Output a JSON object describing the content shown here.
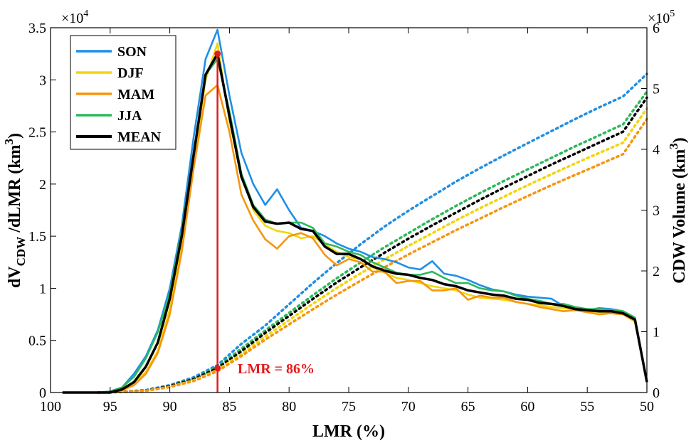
{
  "chart_data": {
    "type": "line",
    "xlabel": "LMR (%)",
    "x_reversed": true,
    "xlim": [
      100,
      50
    ],
    "x_ticks": [
      "100",
      "95",
      "90",
      "85",
      "80",
      "75",
      "70",
      "65",
      "60",
      "55",
      "50"
    ],
    "y_left": {
      "label_parts": {
        "d": "dV",
        "sub": "CDW",
        "mid": " /dLMR (km",
        "sup": "3",
        "end": ")"
      },
      "ylim": [
        0,
        35000
      ],
      "ticks": [
        "0",
        "0.5",
        "1",
        "1.5",
        "2",
        "2.5",
        "3",
        "3.5"
      ],
      "exponent_base": "×10",
      "exponent_power": "4"
    },
    "y_right": {
      "label_parts": {
        "main": "CDW Volume (km",
        "sup": "3",
        "end": ")"
      },
      "ylim": [
        0,
        600000
      ],
      "ticks": [
        "0",
        "1",
        "2",
        "3",
        "4",
        "5",
        "6"
      ],
      "exponent_base": "×10",
      "exponent_power": "5"
    },
    "grid": false,
    "legend_position": "top-left",
    "annotation": {
      "text": "LMR = 86%",
      "x": 86,
      "color": "#e31a1c",
      "peak_y": 32500,
      "cum_y": 40000
    },
    "colors": {
      "SON": "#1f8fe5",
      "DJF": "#f2d50a",
      "MAM": "#f5960f",
      "JJA": "#2eb85c",
      "MEAN": "#000000"
    },
    "series": [
      {
        "name": "SON",
        "x": [
          99,
          98,
          97,
          96,
          95,
          94,
          93,
          92,
          91,
          90,
          89,
          88,
          87,
          86,
          85,
          84,
          83,
          82,
          81,
          80,
          79,
          78,
          77,
          76,
          75,
          74,
          73,
          72,
          71,
          70,
          69,
          68,
          67,
          66,
          65,
          64,
          63,
          62,
          61,
          60,
          59,
          58,
          57,
          56,
          55,
          54,
          53,
          52,
          51,
          50
        ],
        "values": [
          0,
          0,
          0,
          0,
          100,
          500,
          1800,
          3500,
          6000,
          10000,
          16000,
          24500,
          32000,
          34800,
          28500,
          23000,
          20000,
          18000,
          19500,
          17500,
          15800,
          15500,
          15000,
          14300,
          13800,
          13500,
          13000,
          12800,
          12500,
          12000,
          11800,
          12600,
          11400,
          11200,
          10800,
          10300,
          9900,
          9700,
          9400,
          9200,
          9100,
          9000,
          8300,
          8000,
          7900,
          8100,
          8000,
          7800,
          7000,
          1000
        ]
      },
      {
        "name": "DJF",
        "x": [
          99,
          98,
          97,
          96,
          95,
          94,
          93,
          92,
          91,
          90,
          89,
          88,
          87,
          86,
          85,
          84,
          83,
          82,
          81,
          80,
          79,
          78,
          77,
          76,
          75,
          74,
          73,
          72,
          71,
          70,
          69,
          68,
          67,
          66,
          65,
          64,
          63,
          62,
          61,
          60,
          59,
          58,
          57,
          56,
          55,
          54,
          53,
          52,
          51,
          50
        ],
        "values": [
          0,
          0,
          0,
          0,
          0,
          200,
          800,
          2000,
          4000,
          8000,
          14000,
          22000,
          30000,
          33500,
          26000,
          21000,
          17500,
          16000,
          15500,
          15300,
          14800,
          15000,
          14200,
          13500,
          13000,
          12800,
          12000,
          11500,
          11000,
          10800,
          10500,
          10200,
          10000,
          9800,
          9400,
          9100,
          9000,
          8900,
          8700,
          8500,
          8400,
          8200,
          8100,
          8000,
          7800,
          7700,
          7600,
          7500,
          6800,
          1000
        ]
      },
      {
        "name": "MAM",
        "x": [
          99,
          98,
          97,
          96,
          95,
          94,
          93,
          92,
          91,
          90,
          89,
          88,
          87,
          86,
          85,
          84,
          83,
          82,
          81,
          80,
          79,
          78,
          77,
          76,
          75,
          74,
          73,
          72,
          71,
          70,
          69,
          68,
          67,
          66,
          65,
          64,
          63,
          62,
          61,
          60,
          59,
          58,
          57,
          56,
          55,
          54,
          53,
          52,
          51,
          50
        ],
        "values": [
          0,
          0,
          0,
          0,
          0,
          200,
          700,
          1800,
          3800,
          7500,
          13500,
          21500,
          28500,
          29500,
          25000,
          19000,
          16500,
          14700,
          13800,
          15000,
          15300,
          14800,
          13200,
          12200,
          12800,
          12500,
          11600,
          11600,
          10500,
          10700,
          10700,
          9800,
          9800,
          10000,
          8900,
          9300,
          9100,
          9100,
          8700,
          8500,
          8200,
          8000,
          7800,
          7900,
          7700,
          7500,
          7600,
          7500,
          6900,
          1000
        ]
      },
      {
        "name": "JJA",
        "x": [
          99,
          98,
          97,
          96,
          95,
          94,
          93,
          92,
          91,
          90,
          89,
          88,
          87,
          86,
          85,
          84,
          83,
          82,
          81,
          80,
          79,
          78,
          77,
          76,
          75,
          74,
          73,
          72,
          71,
          70,
          69,
          68,
          67,
          66,
          65,
          64,
          63,
          62,
          61,
          60,
          59,
          58,
          57,
          56,
          55,
          54,
          53,
          52,
          51,
          50
        ],
        "values": [
          0,
          0,
          0,
          0,
          100,
          500,
          1500,
          3300,
          5800,
          9500,
          15500,
          23000,
          30500,
          32000,
          27000,
          21000,
          18000,
          16600,
          16200,
          16300,
          16300,
          15800,
          14300,
          14000,
          13500,
          13200,
          12500,
          12000,
          11500,
          11300,
          11300,
          11600,
          11000,
          10500,
          10500,
          10000,
          9800,
          9700,
          9300,
          9000,
          8800,
          8500,
          8500,
          8200,
          8000,
          8000,
          7900,
          7800,
          7200,
          1000
        ]
      },
      {
        "name": "MEAN",
        "x": [
          99,
          98,
          97,
          96,
          95,
          94,
          93,
          92,
          91,
          90,
          89,
          88,
          87,
          86,
          85,
          84,
          83,
          82,
          81,
          80,
          79,
          78,
          77,
          76,
          75,
          74,
          73,
          72,
          71,
          70,
          69,
          68,
          67,
          66,
          65,
          64,
          63,
          62,
          61,
          60,
          59,
          58,
          57,
          56,
          55,
          54,
          53,
          52,
          51,
          50
        ],
        "values": [
          0,
          0,
          0,
          0,
          0,
          300,
          1000,
          2500,
          4800,
          9000,
          15000,
          22800,
          30500,
          32500,
          26500,
          20700,
          17800,
          16400,
          16200,
          16300,
          15700,
          15500,
          14000,
          13300,
          13300,
          12800,
          12100,
          11700,
          11400,
          11300,
          11000,
          10800,
          10400,
          10200,
          9800,
          9600,
          9400,
          9300,
          9000,
          8900,
          8600,
          8500,
          8300,
          8000,
          7900,
          7800,
          7800,
          7600,
          7000,
          1000
        ]
      }
    ],
    "cumulative_series": [
      {
        "name": "SON",
        "axis": "right",
        "x": [
          96,
          94,
          92,
          90,
          88,
          86,
          84,
          82,
          80,
          78,
          76,
          74,
          72,
          70,
          68,
          66,
          64,
          62,
          60,
          58,
          56,
          54,
          52,
          50
        ],
        "values": [
          0,
          1000,
          4000,
          12000,
          25000,
          45000,
          80000,
          110000,
          145000,
          180000,
          213000,
          244000,
          273000,
          299000,
          323000,
          347000,
          369000,
          390000,
          410000,
          430000,
          450000,
          469000,
          487000,
          524000
        ]
      },
      {
        "name": "JJA",
        "axis": "right",
        "x": [
          96,
          94,
          92,
          90,
          88,
          86,
          84,
          82,
          80,
          78,
          76,
          74,
          72,
          70,
          68,
          66,
          64,
          62,
          60,
          58,
          56,
          54,
          52,
          50
        ],
        "values": [
          0,
          1000,
          3500,
          11000,
          23000,
          42000,
          72000,
          102000,
          131000,
          160000,
          188000,
          214000,
          239000,
          262000,
          285000,
          307000,
          328000,
          348000,
          367000,
          386000,
          405000,
          423000,
          441000,
          495000
        ]
      },
      {
        "name": "MEAN",
        "axis": "right",
        "x": [
          96,
          94,
          92,
          90,
          88,
          86,
          84,
          82,
          80,
          78,
          76,
          74,
          72,
          70,
          68,
          66,
          64,
          62,
          60,
          58,
          56,
          54,
          52,
          50
        ],
        "values": [
          0,
          1000,
          3500,
          10500,
          22000,
          40000,
          68000,
          98000,
          126000,
          154000,
          181000,
          206000,
          230000,
          253000,
          275000,
          296000,
          317000,
          337000,
          356000,
          375000,
          393000,
          411000,
          429000,
          485000
        ]
      },
      {
        "name": "DJF",
        "axis": "right",
        "x": [
          96,
          94,
          92,
          90,
          88,
          86,
          84,
          82,
          80,
          78,
          76,
          74,
          72,
          70,
          68,
          66,
          64,
          62,
          60,
          58,
          56,
          54,
          52,
          50
        ],
        "values": [
          0,
          800,
          3000,
          9500,
          20000,
          37000,
          63000,
          92000,
          119000,
          146000,
          172000,
          196000,
          219000,
          241000,
          262000,
          283000,
          303000,
          322000,
          341000,
          359000,
          377000,
          394000,
          411000,
          467000
        ]
      },
      {
        "name": "MAM",
        "axis": "right",
        "x": [
          96,
          94,
          92,
          90,
          88,
          86,
          84,
          82,
          80,
          78,
          76,
          74,
          72,
          70,
          68,
          66,
          64,
          62,
          60,
          58,
          56,
          54,
          52,
          50
        ],
        "values": [
          0,
          800,
          2800,
          9000,
          19000,
          35000,
          60000,
          87000,
          112000,
          137000,
          161000,
          184000,
          206000,
          227000,
          247000,
          267000,
          286000,
          305000,
          323000,
          341000,
          358000,
          375000,
          392000,
          450000
        ]
      }
    ]
  }
}
